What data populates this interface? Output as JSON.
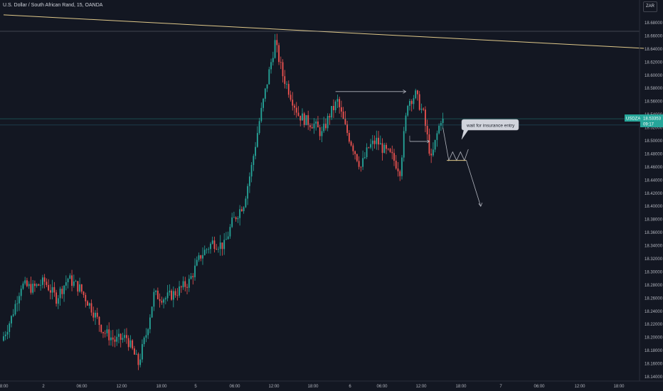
{
  "header": {
    "title": "U.S. Dollar / South African Rand, 15, OANDA",
    "currency_button": "ZAR"
  },
  "price_badge": {
    "symbol": "USDZAR",
    "price": "18.53353",
    "countdown": "09:17"
  },
  "annotation": {
    "text": "wait for insurance entry"
  },
  "colors": {
    "background": "#131722",
    "grid": "#1e222d",
    "up_candle": "#26a69a",
    "down_candle": "#ef5350",
    "trendline": "#e0c98a",
    "drawing": "#b2b5be",
    "badge": "#26a69a",
    "axis_text": "#b2b5be"
  },
  "chart_data": {
    "type": "candlestick",
    "symbol": "USDZAR",
    "timeframe": "15",
    "source": "OANDA",
    "ylim": [
      18.14,
      18.7
    ],
    "y_ticks": [
      "18.68000",
      "18.66000",
      "18.64000",
      "18.62000",
      "18.60000",
      "18.58000",
      "18.56000",
      "18.54000",
      "18.52000",
      "18.50000",
      "18.48000",
      "18.46000",
      "18.44000",
      "18.42000",
      "18.40000",
      "18.38000",
      "18.36000",
      "18.34000",
      "18.32000",
      "18.30000",
      "18.28000",
      "18.26000",
      "18.24000",
      "18.22000",
      "18.20000",
      "18.18000",
      "18.16000",
      "18.14000"
    ],
    "x_ticks": [
      "18:00",
      "2",
      "06:00",
      "12:00",
      "18:00",
      "5",
      "06:00",
      "12:00",
      "18:00",
      "6",
      "06:00",
      "12:00",
      "18:00",
      "7",
      "06:00",
      "12:00",
      "18:00"
    ],
    "grid": false,
    "last_price": 18.5335,
    "anchors": [
      {
        "t": 0,
        "p": 18.195
      },
      {
        "t": 5,
        "p": 18.23
      },
      {
        "t": 10,
        "p": 18.28
      },
      {
        "t": 16,
        "p": 18.275
      },
      {
        "t": 22,
        "p": 18.285
      },
      {
        "t": 28,
        "p": 18.26
      },
      {
        "t": 34,
        "p": 18.29
      },
      {
        "t": 40,
        "p": 18.275
      },
      {
        "t": 46,
        "p": 18.245
      },
      {
        "t": 52,
        "p": 18.21
      },
      {
        "t": 58,
        "p": 18.195
      },
      {
        "t": 64,
        "p": 18.2
      },
      {
        "t": 70,
        "p": 18.16
      },
      {
        "t": 74,
        "p": 18.205
      },
      {
        "t": 78,
        "p": 18.265
      },
      {
        "t": 84,
        "p": 18.26
      },
      {
        "t": 90,
        "p": 18.27
      },
      {
        "t": 96,
        "p": 18.285
      },
      {
        "t": 102,
        "p": 18.325
      },
      {
        "t": 108,
        "p": 18.345
      },
      {
        "t": 114,
        "p": 18.34
      },
      {
        "t": 118,
        "p": 18.375
      },
      {
        "t": 124,
        "p": 18.405
      },
      {
        "t": 128,
        "p": 18.46
      },
      {
        "t": 132,
        "p": 18.53
      },
      {
        "t": 136,
        "p": 18.59
      },
      {
        "t": 140,
        "p": 18.65
      },
      {
        "t": 144,
        "p": 18.6
      },
      {
        "t": 148,
        "p": 18.57
      },
      {
        "t": 152,
        "p": 18.54
      },
      {
        "t": 156,
        "p": 18.53
      },
      {
        "t": 160,
        "p": 18.525
      },
      {
        "t": 164,
        "p": 18.51
      },
      {
        "t": 168,
        "p": 18.54
      },
      {
        "t": 172,
        "p": 18.56
      },
      {
        "t": 176,
        "p": 18.52
      },
      {
        "t": 180,
        "p": 18.49
      },
      {
        "t": 184,
        "p": 18.46
      },
      {
        "t": 188,
        "p": 18.49
      },
      {
        "t": 192,
        "p": 18.5
      },
      {
        "t": 196,
        "p": 18.485
      },
      {
        "t": 200,
        "p": 18.475
      },
      {
        "t": 204,
        "p": 18.455
      },
      {
        "t": 208,
        "p": 18.56
      },
      {
        "t": 212,
        "p": 18.57
      },
      {
        "t": 216,
        "p": 18.54
      },
      {
        "t": 220,
        "p": 18.47
      },
      {
        "t": 223,
        "p": 18.51
      },
      {
        "t": 225,
        "p": 18.5335
      }
    ],
    "overlays": {
      "trendline": {
        "from": {
          "t": 0,
          "p": 18.692
        },
        "to": {
          "t": 317,
          "p": 18.641
        }
      },
      "horizontal_lines": [
        18.667,
        18.5335,
        18.524
      ],
      "resistance_arrow": {
        "from": {
          "t": 170,
          "p": 18.575
        },
        "to": {
          "t": 206,
          "p": 18.575
        }
      },
      "entry_box": {
        "from": {
          "t": 208,
          "p": 18.499
        },
        "to": {
          "t": 218,
          "p": 18.499
        }
      },
      "projection_zigzag": [
        {
          "t": 225,
          "p": 18.52
        },
        {
          "t": 228,
          "p": 18.47
        },
        {
          "t": 230,
          "p": 18.483
        },
        {
          "t": 232,
          "p": 18.47
        },
        {
          "t": 234,
          "p": 18.483
        },
        {
          "t": 236,
          "p": 18.47
        },
        {
          "t": 238,
          "p": 18.487
        }
      ],
      "entry_level": {
        "from": {
          "t": 227,
          "p": 18.47
        },
        "to": {
          "t": 237,
          "p": 18.47
        }
      },
      "target_arrow": {
        "from": {
          "t": 237,
          "p": 18.47
        },
        "to": {
          "t": 240,
          "p": 18.4
        }
      }
    }
  }
}
